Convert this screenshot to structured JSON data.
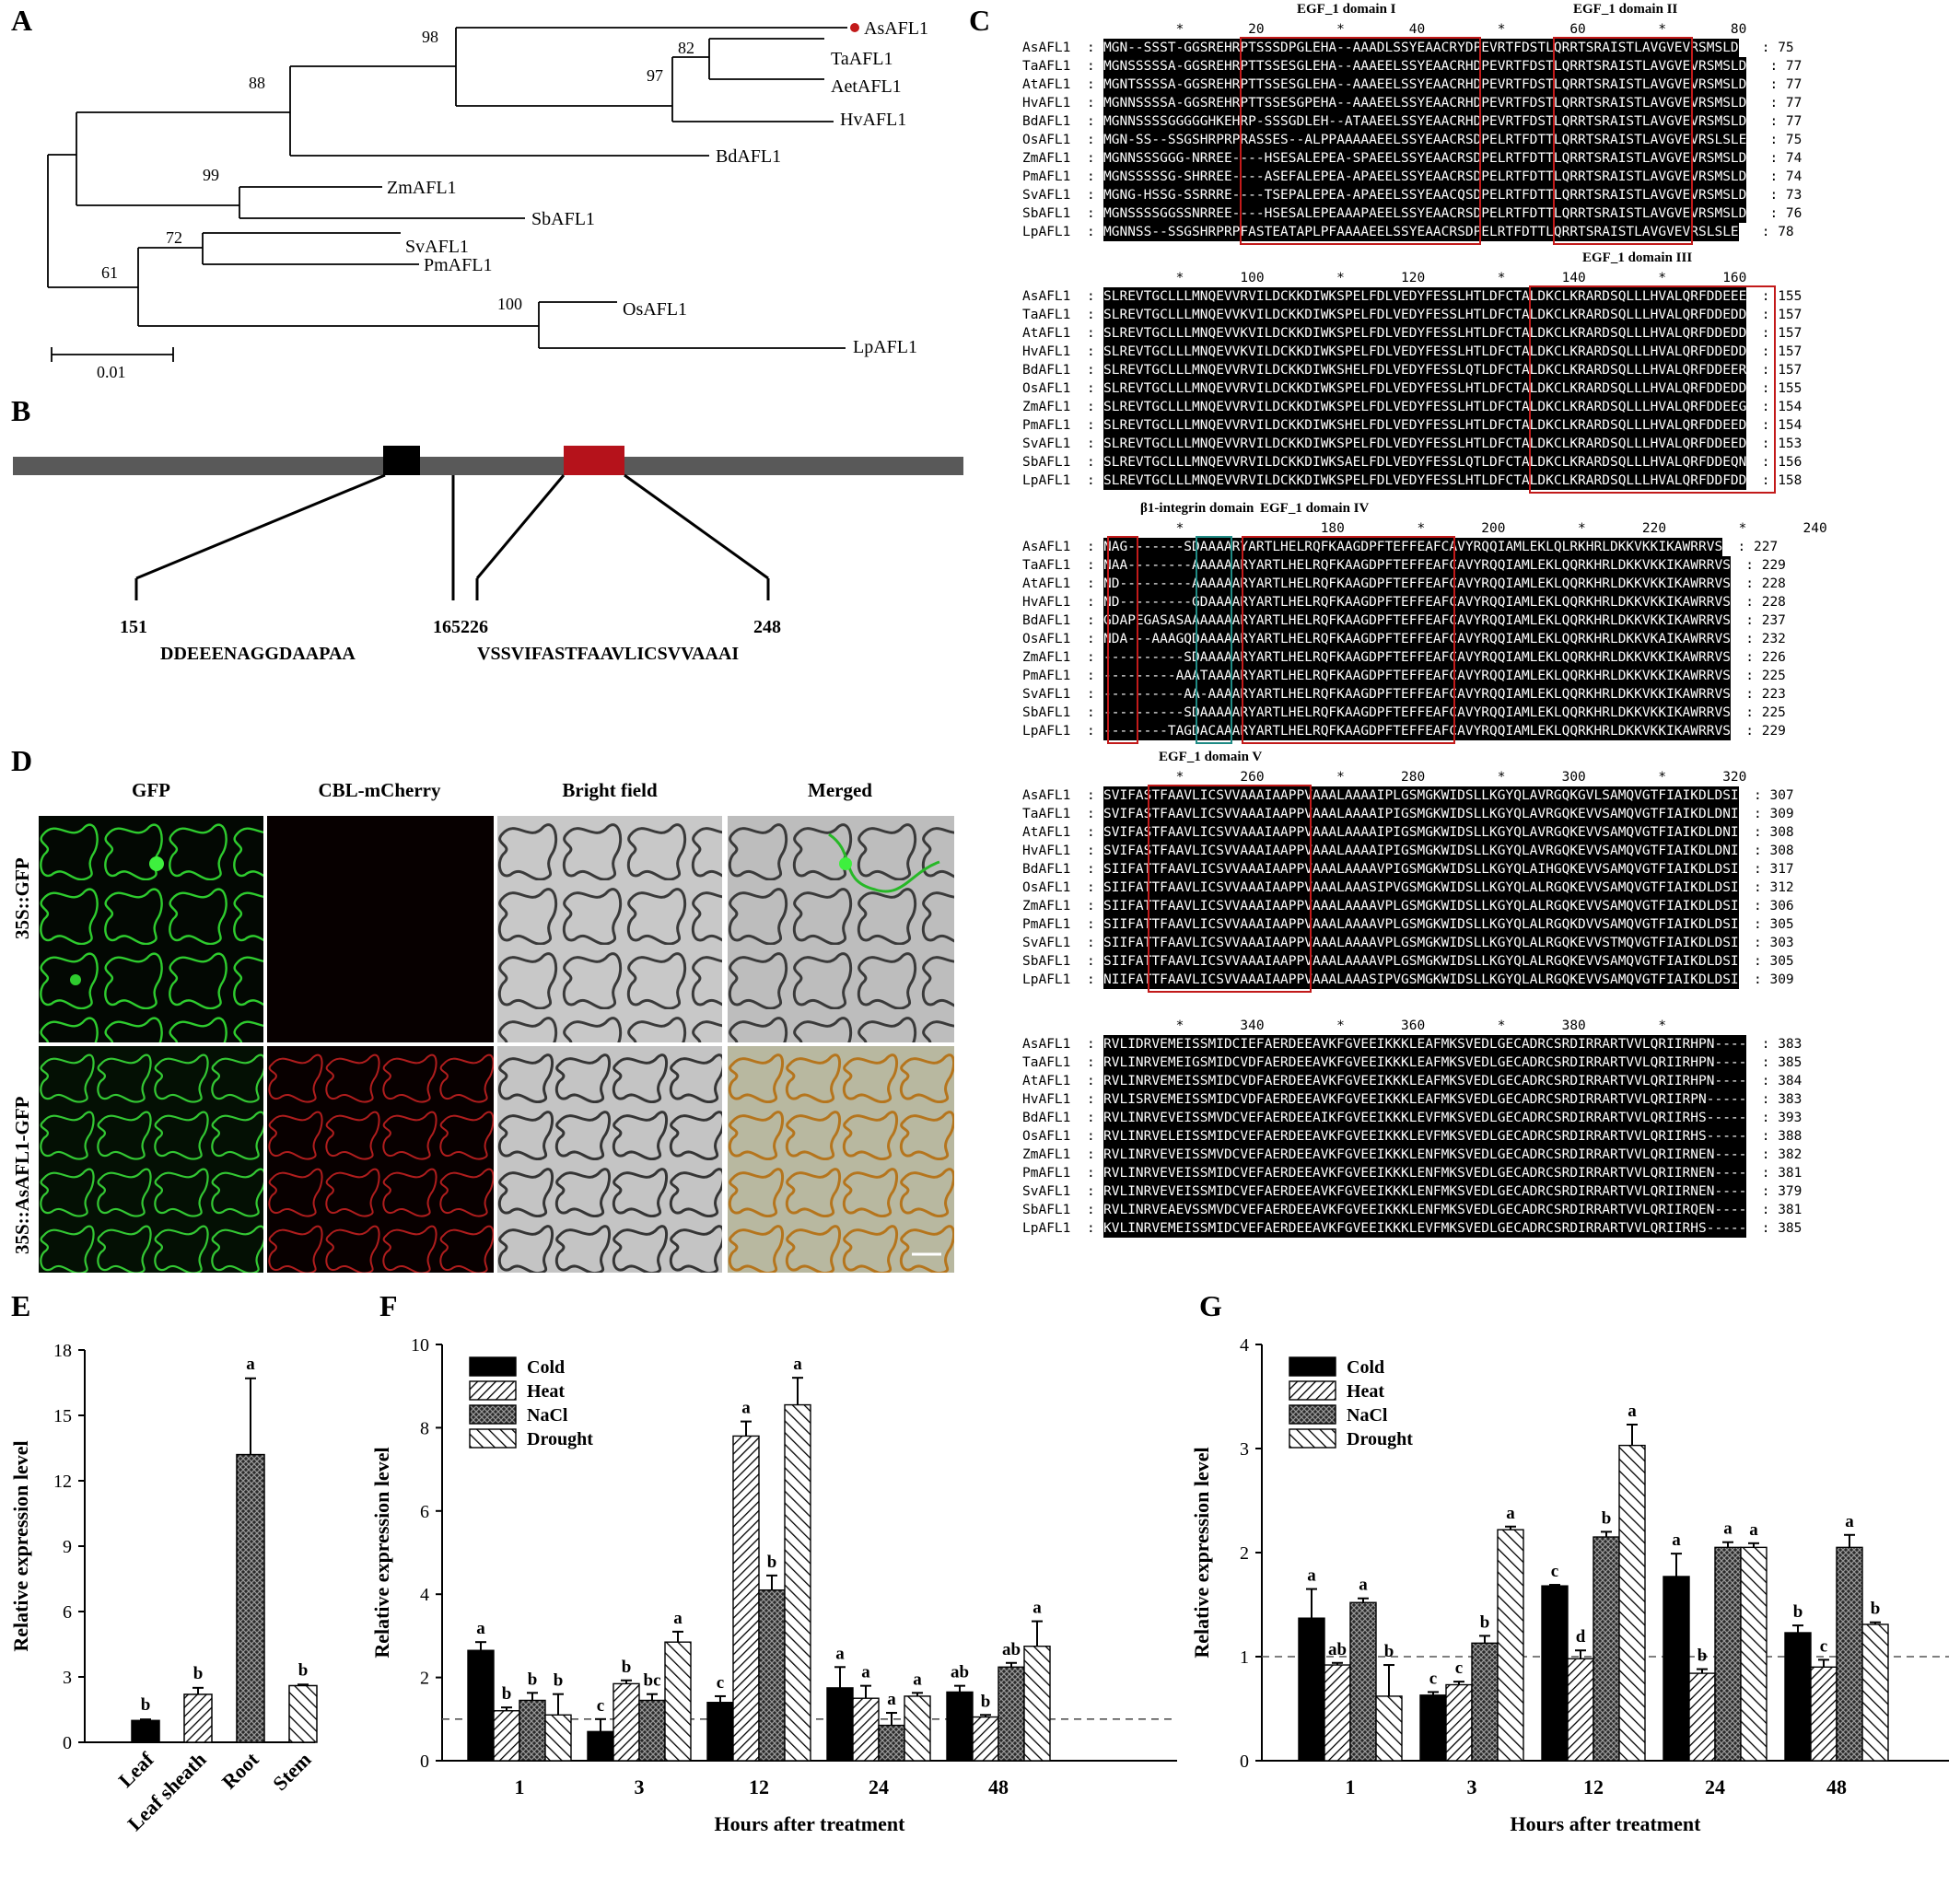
{
  "panels": {
    "A": "A",
    "B": "B",
    "C": "C",
    "D": "D",
    "E": "E",
    "F": "F",
    "G": "G"
  },
  "tree": {
    "taxa": [
      "AsAFL1",
      "TaAFL1",
      "AetAFL1",
      "HvAFL1",
      "BdAFL1",
      "ZmAFL1",
      "SbAFL1",
      "SvAFL1",
      "PmAFL1",
      "OsAFL1",
      "LpAFL1"
    ],
    "bootstraps": [
      "98",
      "82",
      "97",
      "88",
      "99",
      "72",
      "61",
      "100"
    ],
    "scale": "0.01",
    "highlight_color": "#c21a1a"
  },
  "domain_map": {
    "start1": "151",
    "end1": "165",
    "seq1": "DDEEENAGGDAAPAA",
    "start2": "226",
    "end2": "248",
    "seq2": "VSSVIFASTFAAVLICSVVAAAI",
    "black_color": "#000000",
    "red_color": "#b5121b"
  },
  "alignment": {
    "names": [
      "AsAFL1",
      "TaAFL1",
      "AtAFL1",
      "HvAFL1",
      "BdAFL1",
      "OsAFL1",
      "ZmAFL1",
      "PmAFL1",
      "SvAFL1",
      "SbAFL1",
      "LpAFL1"
    ],
    "blocks": [
      {
        "ruler": "         *        20         *        40         *        60         *        80",
        "titles": [
          "EGF_1 domain I",
          "EGF_1 domain II"
        ],
        "seqs": [
          "MGN--SSST-GGSREHRPTSSSDPGLEHA--AAADLSSYEAACRYDPEVRTFDSTLQRRTSRAISTLAVGVEVRSMSLD",
          "MGNSSSSSA-GGSREHRPTTSSESGLEHA--AAAEELSSYEAACRHDPEVRTFDSTLQRRTSRAISTLAVGVEVRSMSLD",
          "MGNTSSSSA-GGSREHRPTTSSESGLEHA--AAAEELSSYEAACRHDPEVRTFDSTLQRRTSRAISTLAVGVEVRSMSLD",
          "MGNNSSSSA-GGSREHRPTTSSESGPEHA--AAAEELSSYEAACRHDPEVRTFDSTLQRRTSRAISTLAVGVEVRSMSLD",
          "MGNNSSSSGGGGGHKEHRP-SSSGDLEH--ATAAEELSSYEAACRHDPEVRTFDSTLQRRTSRAISTLAVGVEVRSMSLD",
          "MGN-SS--SSGSHRPRPRASSES--ALPPAAAAAEELSSYEAACRSDPELRTFDTTLQRRTSRAISTLAVGVEVRSLSLE",
          "MGNNSSSGGG-NRREE----HSESALEPEA-SPAEELSSYEAACRSDPELRTFDTTLQRRTSRAISTLAVGVEVRSMSLD",
          "MGNSSSSSG-SHRREE----ASEFALEPEA-APAEELSSYEAACRSDPELRTFDTTLQRRTSRAISTLAVGVEVRSMSLD",
          "MGNG-HSSG-SSRRRE----TSEPALEPEA-APAEELSSYEAACQSDPELRTFDTTLQRRTSRAISTLAVGVEVRSMSLD",
          "MGNSSSSGGSSNRREE----HSESALEPEAAAPAEELSSYEAACRSDPELRTFDTTLQRRTSRAISTLAVGVEVRSMSLD",
          "MGNNSS--SSGSHRPRPFASTEATAPLPFAAAAEELSSYEAACRSDPELRTFDTTLQRRTSRAISTLAVGVEVRSLSLE"
        ],
        "ends": [
          "75",
          "77",
          "77",
          "77",
          "77",
          "75",
          "74",
          "74",
          "73",
          "76",
          "78"
        ]
      },
      {
        "ruler": "         *       100         *       120         *       140         *       160",
        "titles": [
          "EGF_1 domain III"
        ],
        "seqs": [
          "SLREVTGCLLLMNQEVVRVILDCKKDIWKSPELFDLVEDYFESSLHTLDFCTALDKCLKRARDSQLLLHVALQRFDDEEE",
          "SLREVTGCLLLMNQEVVKVILDCKKDIWKSPELFDLVEDYFESSLHTLDFCTALDKCLKRARDSQLLLHVALQRFDDEDD",
          "SLREVTGCLLLMNQEVVKVILDCKKDIWKSPELFDLVEDYFESSLHTLDFCTALDKCLKRARDSQLLLHVALQRFDDEDD",
          "SLREVTGCLLLMNQEVVKVILDCKKDIWKSPELFDLVEDYFESSLHTLDFCTALDKCLKRARDSQLLLHVALQRFDDEDD",
          "SLREVTGCLLLMNQEVVRVILDCKKDIWKSHELFDLVEDYFESSLQTLDFCTALDKCLKRARDSQLLLHVALQRFDDEER",
          "SLREVTGCLLLMNQEVVRVILDCKKDIWKSPELFDLVEDYFESSLHTLDFCTALDKCLKRARDSQLLLHVALQRFDDEDD",
          "SLREVTGCLLLMNQEVVRVILDCKKDIWKSPELFDLVEDYFESSLHTLDFCTALDKCLKRARDSQLLLHVALQRFDDEEG",
          "SLREVTGCLLLMNQEVVRVILDCKKDIWKSHELFDLVEDYFESSLHTLDFCTALDKCLKRARDSQLLLHVALQRFDDEED",
          "SLREVTGCLLLMNQEVVRVILDCKKDIWKSPELFDLVEDYFESSLHTLDFCTALDKCLKRARDSQLLLHVALQRFDDEED",
          "SLREVTGCLLLMNQEVVRVILDCKKDIWKSAELFDLVEDYFESSLQTLDFCTALDKCLKRARDSQLLLHVALQRFDDEQN",
          "SLREVTGCLLLMNQEVVRVILDCKKDIWKSPELFDLVEDYFESSLHTLDFCTALDKCLKRARDSQLLLHVALQRFDDFDD"
        ],
        "ends": [
          "155",
          "157",
          "157",
          "157",
          "157",
          "155",
          "154",
          "154",
          "153",
          "156",
          "158"
        ]
      },
      {
        "ruler": "         *                 180         *       200         *       220         *       240",
        "titles": [
          "β1-integrin domain",
          "EGF_1 domain IV"
        ],
        "seqs": [
          "NAG-------SDAAAARYARTLHELRQFKAAGDPFTEFFEAFCAVYRQQIAMLEKLQLRKHRLDKKVKKIKAWRRVS",
          "NAA--------AAAAAARYARTLHELRQFKAAGDPFTEFFEAFCAVYRQQIAMLEKLQQRKHRLDKKVKKIKAWRRVS",
          "ND---------AAAAAARYARTLHELRQFKAAGDPFTEFFEAFCAVYRQQIAMLEKLQQRKHRLDKKVKKIKAWRRVS",
          "ND---------GDAAAARYARTLHELRQFKAAGDPFTEFFEAFCAVYRQQIAMLEKLQQRKHRLDKKVKKIKAWRRVS",
          "GDAPEGASASAAAAAAARYARTLHELRQFKAAGDPFTEFFEAFCAVYRQQIAMLEKLQQRKHRLDKKVKKIKAWRRVS",
          "NDA---AAAGQDAAAAARYARTLHELRQFKAAGDPFTEFFEAFCAVYRQQIAMLEKLQQRKHRLDKKVKAIKAWRRVS",
          "----------SDAAAAARYARTLHELRQFKAAGDPFTEFFEAFCAVYRQQIAMLEKLQQRKHRLDKKVKKIKAWRRVS",
          "---------AAATAAAARYARTLHELRQFKAAGDPFTEFFEAFCAVYRQQIAMLEKLQQRKHRLDKKVKKIKAWRRVS",
          "----------AA-AAAARYARTLHELRQFKAAGDPFTEFFEAFCAVYRQQIAMLEKLQQRKHRLDKKVKKIKAWRRVS",
          "----------SDAAAAARYARTLHELRQFKAAGDPFTEFFEAFCAVYRQQIAMLEKLQQRKHRLDKKVKKIKAWRRVS",
          "--------TAGDACAAARYARTLHELRQFKAAGDPFTEFFEAFCAVYRQQIAMLEKLQQRKHRLDKKVKKIKAWRRVS"
        ],
        "ends": [
          "227",
          "229",
          "228",
          "228",
          "237",
          "232",
          "226",
          "225",
          "223",
          "225",
          "229"
        ]
      },
      {
        "ruler": "         *       260         *       280         *       300         *       320",
        "titles": [
          "EGF_1 domain V"
        ],
        "seqs": [
          "SVIFASTFAAVLICSVVAAAIAAPPVAAALAAAAIPLGSMGKWIDSLLKGYQLAVRGQKGVLSAMQVGTFIAIKDLDSI",
          "SVIFASTFAAVLICSVVAAAIAAPPVAAALAAAAIPIGSMGKWIDSLLKGYQLAVRGQKEVVSAMQVGTFIAIKDLDNI",
          "SVIFASTFAAVLICSVVAAAIAAPPVAAALAAAAIPIGSMGKWIDSLLKGYQLAVRGQKEVVSAMQVGTFIAIKDLDNI",
          "SVIFASTFAAVLICSVVAAAIAAPPVAAALAAAAIPIGSMGKWIDSLLKGYQLAVRGQKEVVSAMQVGTFIAIKDLDNI",
          "SIIFATTFAAVLICSVVAAAIAAPPVAAALAAAAVPIGSMGKWIDSLLKGYQLAIHGQKEVVSAMQVGTFIAIKDLDSI",
          "SIIFATTFAAVLICSVVAAAIAAPPVAAALAAASIPVGSMGKWIDSLLKGYQLALRGQKEVVSAMQVGTFIAIKDLDSI",
          "SIIFATTFAAVLICSVVAAAIAAPPVAAALAAAAVPLGSMGKWIDSLLKGYQLALRGQKEVVSAMQVGTFIAIKDLDSI",
          "SIIFATTFAAVLICSVVAAAIAAPPVAAALAAAAVPLGSMGKWIDSLLKGYQLALRGQKDVVSAMQVGTFIAIKDLDSI",
          "SIIFATTFAAVLICSVVAAAIAAPPVAAALAAAAVPLGSMGKWIDSLLKGYQLALRGQKEVVSTMQVGTFIAIKDLDSI",
          "SIIFATTFAAVLICSVVAAAIAAPPVAAALAAAAVPLGSMGKWIDSLLKGYQLALRGQKEVVSAMQVGTFIAIKDLDSI",
          "NIIFATTFAAVLICSVVAAAIAAPPVAAALAAASIPVGSMGKWIDSLLKGYQLALRGQKEVVSAMQVGTFIAIKDLDSI"
        ],
        "ends": [
          "307",
          "309",
          "308",
          "308",
          "317",
          "312",
          "306",
          "305",
          "303",
          "305",
          "309"
        ]
      },
      {
        "ruler": "         *       340         *       360         *       380         *",
        "titles": [],
        "seqs": [
          "RVLIDRVEMEISSMIDCIEFAERDEEAVKFGVEEIKKKLEAFMKSVEDLGECADRCSRDIRRARTVVLQRIIRHPN----",
          "RVLINRVEMEIGSMIDCVDFAERDEEAVKFGVEEIKKKLEAFMKSVEDLGECADRCSRDIRRARTVVLQRIIRHPN----",
          "RVLINRVEMEISSMIDCVDFAERDEEAVKFGVEEIKKKLEAFMKSVEDLGECADRCSRDIRRARTVVLQRIIRHPN----",
          "RVLISRVEMEISSMIDCVDFAERDEEAVKFGVEEIKKKLEAFMKSVEDLGECADRCSRDIRRARTVVLQRIIRPN-----",
          "RVLINRVEVEISSMVDCVEFAERDEEAIKFGVEEIKKKLEVFMKSVEDLGECADRCSRDIRRARTVVLQRIIRHS-----",
          "RVLINRVELEISSMIDCVEFAERDEEAVKFGVEEIKKKLEVFMKSVEDLGECADRCSRDIRRARTVVLQRIIRHS-----",
          "RVLINRVEVEISSMVDCVEFAERDEEAVKFGVEEIKKKLENFMKSVEDLGECADRCSRDIRRARTVVLQRIIRNEN----",
          "RVLINRVEVEISSMIDCVEFAERDEEAVKFGVEEIKKKLENFMKSVEDLGECADRCSRDIRRARTVVLQRIIRNEN----",
          "RVLINRVEVEISSMIDCVEFAERDEEAVKFGVEEIKKKLENFMKSVEDLGECADRCSRDIRRARTVVLQRIIRNEN----",
          "RVLINRVEAEVSSMVDCVEFAERDEEAVKFGVEEIKKKLENFMKSVEDLGECADRCSRDIRRARTVVLQRIIRQEN----",
          "KVLINRVEMEISSMIDCVEFAERDEEAVKFGVEEIKKKLEVFMKSVEDLGECADRCSRDIRRARTVVLQRIIRHS-----"
        ],
        "ends": [
          "383",
          "385",
          "384",
          "383",
          "393",
          "388",
          "382",
          "381",
          "379",
          "381",
          "385"
        ]
      }
    ]
  },
  "microscopy": {
    "columns": [
      "GFP",
      "CBL-mCherry",
      "Bright field",
      "Merged"
    ],
    "rows": [
      "35S::GFP",
      "35S::AsAFL1-GFP"
    ]
  },
  "chart_data": [
    {
      "panel": "E",
      "type": "bar",
      "categories": [
        "Leaf",
        "Leaf sheath",
        "Root",
        "Stem"
      ],
      "values": [
        1.0,
        2.2,
        13.2,
        2.6
      ],
      "errors": [
        0.05,
        0.3,
        3.5,
        0.05
      ],
      "significance": [
        "b",
        "b",
        "a",
        "b"
      ],
      "ylabel": "Relative expression level",
      "ylim": [
        0,
        18
      ],
      "yticks": [
        "0",
        "3",
        "6",
        "9",
        "12",
        "15",
        "18"
      ]
    },
    {
      "panel": "F",
      "type": "bar",
      "categories": [
        "1",
        "3",
        "12",
        "24",
        "48"
      ],
      "xlabel": "Hours after treatment",
      "ylabel": "Relative expression level",
      "ylim": [
        0,
        10
      ],
      "yticks": [
        "0",
        "2",
        "4",
        "6",
        "8",
        "10"
      ],
      "reference_line": 1,
      "series": [
        {
          "name": "Cold",
          "values": [
            2.65,
            0.7,
            1.4,
            1.75,
            1.65
          ],
          "errors": [
            0.2,
            0.3,
            0.15,
            0.5,
            0.15
          ],
          "sig": [
            "a",
            "c",
            "c",
            "a",
            "ab"
          ]
        },
        {
          "name": "Heat",
          "values": [
            1.2,
            1.85,
            7.8,
            1.5,
            1.05
          ],
          "errors": [
            0.08,
            0.08,
            0.35,
            0.3,
            0.05
          ],
          "sig": [
            "b",
            "b",
            "a",
            "a",
            "b"
          ]
        },
        {
          "name": "NaCl",
          "values": [
            1.45,
            1.45,
            4.1,
            0.85,
            2.25
          ],
          "errors": [
            0.18,
            0.15,
            0.35,
            0.3,
            0.1
          ],
          "sig": [
            "b",
            "bc",
            "b",
            "a",
            "ab"
          ]
        },
        {
          "name": "Drought",
          "values": [
            1.1,
            2.85,
            8.55,
            1.55,
            2.75
          ],
          "errors": [
            0.5,
            0.25,
            0.65,
            0.08,
            0.6
          ],
          "sig": [
            "b",
            "a",
            "a",
            "a",
            "a"
          ]
        }
      ]
    },
    {
      "panel": "G",
      "type": "bar",
      "categories": [
        "1",
        "3",
        "12",
        "24",
        "48"
      ],
      "xlabel": "Hours after treatment",
      "ylabel": "Relative expression level",
      "ylim": [
        0,
        4
      ],
      "yticks": [
        "0",
        "1",
        "2",
        "3",
        "4"
      ],
      "reference_line": 1,
      "series": [
        {
          "name": "Cold",
          "values": [
            1.37,
            0.63,
            1.68,
            1.77,
            1.23
          ],
          "errors": [
            0.28,
            0.03,
            0.01,
            0.22,
            0.07
          ],
          "sig": [
            "a",
            "c",
            "c",
            "a",
            "b"
          ]
        },
        {
          "name": "Heat",
          "values": [
            0.92,
            0.73,
            0.98,
            0.84,
            0.9
          ],
          "errors": [
            0.02,
            0.03,
            0.08,
            0.04,
            0.07
          ],
          "sig": [
            "ab",
            "c",
            "d",
            "b",
            "c"
          ]
        },
        {
          "name": "NaCl",
          "values": [
            1.52,
            1.13,
            2.15,
            2.05,
            2.05
          ],
          "errors": [
            0.04,
            0.07,
            0.05,
            0.05,
            0.12
          ],
          "sig": [
            "a",
            "b",
            "b",
            "a",
            "a"
          ]
        },
        {
          "name": "Drought",
          "values": [
            0.62,
            2.22,
            3.03,
            2.05,
            1.31
          ],
          "errors": [
            0.3,
            0.03,
            0.2,
            0.04,
            0.02
          ],
          "sig": [
            "b",
            "a",
            "a",
            "a",
            "b"
          ]
        }
      ]
    }
  ]
}
